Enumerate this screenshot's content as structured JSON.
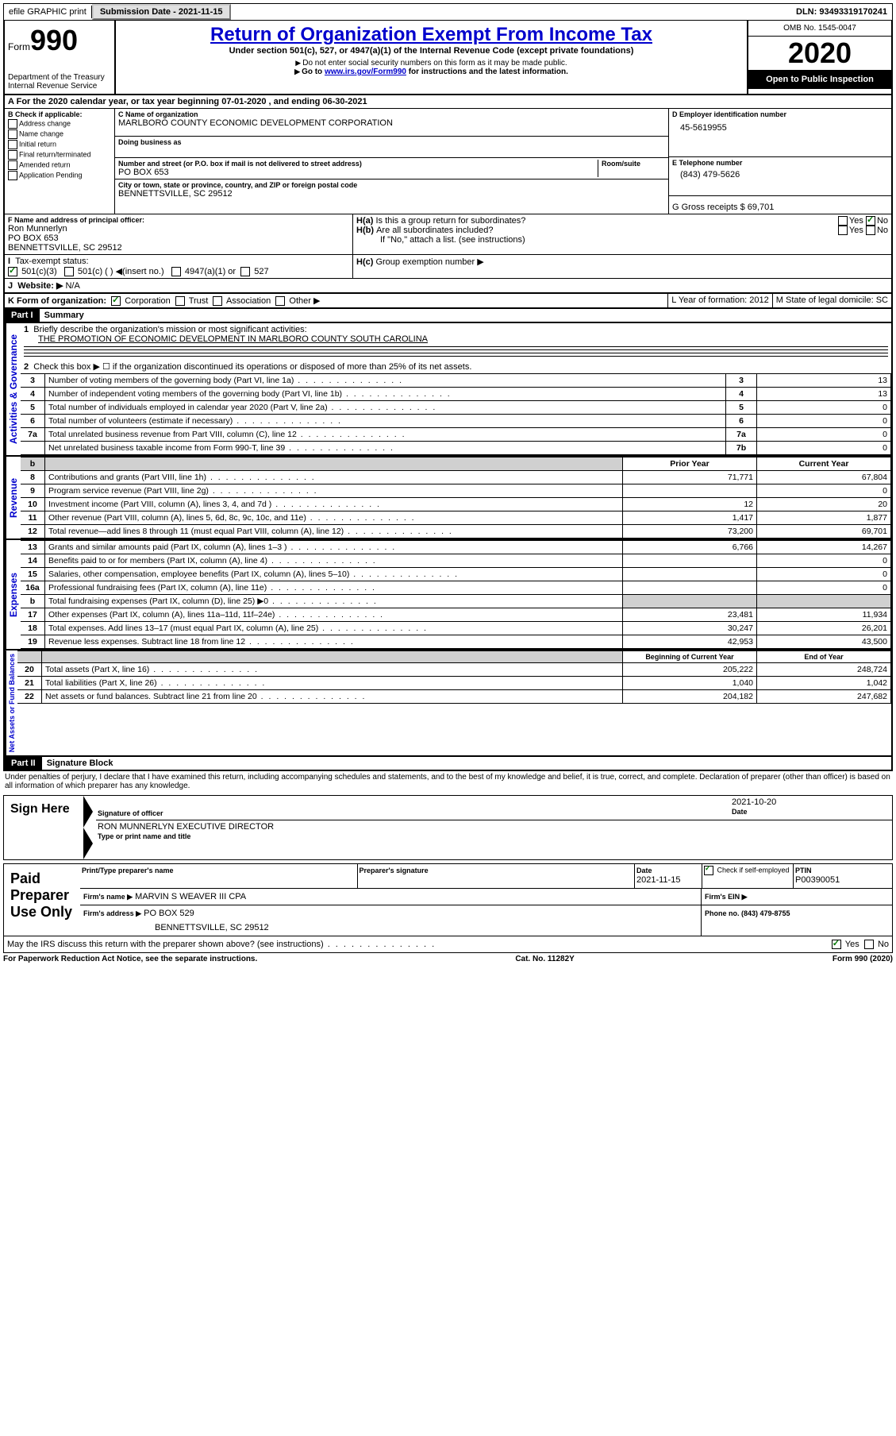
{
  "topbar": {
    "efile_label": "efile GRAPHIC print",
    "submission_label": "Submission Date - 2021-11-15",
    "dln_label": "DLN: 93493319170241"
  },
  "header": {
    "form_prefix": "Form",
    "form_number": "990",
    "dept": "Department of the Treasury",
    "irs": "Internal Revenue Service",
    "title": "Return of Organization Exempt From Income Tax",
    "subtitle": "Under section 501(c), 527, or 4947(a)(1) of the Internal Revenue Code (except private foundations)",
    "note1": "Do not enter social security numbers on this form as it may be made public.",
    "note2_pre": "Go to ",
    "note2_link": "www.irs.gov/Form990",
    "note2_post": " for instructions and the latest information.",
    "omb": "OMB No. 1545-0047",
    "year": "2020",
    "public": "Open to Public Inspection"
  },
  "period": {
    "text": "For the 2020 calendar year, or tax year beginning 07-01-2020    , and ending 06-30-2021"
  },
  "sectionB": {
    "label": "B Check if applicable:",
    "items": [
      "Address change",
      "Name change",
      "Initial return",
      "Final return/terminated",
      "Amended return",
      "Application Pending"
    ]
  },
  "sectionC": {
    "name_label": "C Name of organization",
    "name": "MARLBORO COUNTY ECONOMIC DEVELOPMENT CORPORATION",
    "dba_label": "Doing business as",
    "street_label": "Number and street (or P.O. box if mail is not delivered to street address)",
    "room_label": "Room/suite",
    "street": "PO BOX 653",
    "city_label": "City or town, state or province, country, and ZIP or foreign postal code",
    "city": "BENNETTSVILLE, SC  29512"
  },
  "sectionD": {
    "label": "D Employer identification number",
    "value": "45-5619955"
  },
  "sectionE": {
    "label": "E Telephone number",
    "value": "(843) 479-5626"
  },
  "sectionG": {
    "label": "G Gross receipts $ 69,701"
  },
  "sectionF": {
    "label": "F Name and address of principal officer:",
    "name": "Ron Munnerlyn",
    "addr1": "PO BOX 653",
    "addr2": "BENNETTSVILLE, SC  29512"
  },
  "sectionH": {
    "a_label": "Is this a group return for subordinates?",
    "a_yes": "Yes",
    "a_no": "No",
    "b_label": "Are all subordinates included?",
    "b_note": "If \"No,\" attach a list. (see instructions)",
    "c_label": "Group exemption number ▶"
  },
  "sectionI": {
    "label": "Tax-exempt status:",
    "opts": [
      "501(c)(3)",
      "501(c) (  ) ◀(insert no.)",
      "4947(a)(1) or",
      "527"
    ]
  },
  "sectionJ": {
    "label": "Website: ▶",
    "value": "N/A"
  },
  "sectionK": {
    "label": "K Form of organization:",
    "opts": [
      "Corporation",
      "Trust",
      "Association",
      "Other ▶"
    ]
  },
  "sectionL": {
    "label": "L Year of formation: 2012"
  },
  "sectionM": {
    "label": "M State of legal domicile: SC"
  },
  "parts": {
    "p1": "Part I",
    "p1_title": "Summary",
    "p2": "Part II",
    "p2_title": "Signature Block"
  },
  "summary": {
    "line1_label": "Briefly describe the organization's mission or most significant activities:",
    "line1_value": "THE PROMOTION OF ECONOMIC DEVELOPMENT IN MARLBORO COUNTY SOUTH CAROLINA",
    "line2_label": "Check this box ▶ ☐ if the organization discontinued its operations or disposed of more than 25% of its net assets.",
    "vertical_labels": {
      "gov": "Activities & Governance",
      "rev": "Revenue",
      "exp": "Expenses",
      "net": "Net Assets or Fund Balances"
    },
    "col_prior": "Prior Year",
    "col_current": "Current Year",
    "col_begin": "Beginning of Current Year",
    "col_end": "End of Year",
    "rows_gov": [
      {
        "n": "3",
        "label": "Number of voting members of the governing body (Part VI, line 1a)",
        "box": "3",
        "val": "13"
      },
      {
        "n": "4",
        "label": "Number of independent voting members of the governing body (Part VI, line 1b)",
        "box": "4",
        "val": "13"
      },
      {
        "n": "5",
        "label": "Total number of individuals employed in calendar year 2020 (Part V, line 2a)",
        "box": "5",
        "val": "0"
      },
      {
        "n": "6",
        "label": "Total number of volunteers (estimate if necessary)",
        "box": "6",
        "val": "0"
      },
      {
        "n": "7a",
        "label": "Total unrelated business revenue from Part VIII, column (C), line 12",
        "box": "7a",
        "val": "0"
      },
      {
        "n": "",
        "label": "Net unrelated business taxable income from Form 990-T, line 39",
        "box": "7b",
        "val": "0"
      }
    ],
    "rows_rev": [
      {
        "n": "8",
        "label": "Contributions and grants (Part VIII, line 1h)",
        "prior": "71,771",
        "curr": "67,804"
      },
      {
        "n": "9",
        "label": "Program service revenue (Part VIII, line 2g)",
        "prior": "",
        "curr": "0"
      },
      {
        "n": "10",
        "label": "Investment income (Part VIII, column (A), lines 3, 4, and 7d )",
        "prior": "12",
        "curr": "20"
      },
      {
        "n": "11",
        "label": "Other revenue (Part VIII, column (A), lines 5, 6d, 8c, 9c, 10c, and 11e)",
        "prior": "1,417",
        "curr": "1,877"
      },
      {
        "n": "12",
        "label": "Total revenue—add lines 8 through 11 (must equal Part VIII, column (A), line 12)",
        "prior": "73,200",
        "curr": "69,701"
      }
    ],
    "rows_exp": [
      {
        "n": "13",
        "label": "Grants and similar amounts paid (Part IX, column (A), lines 1–3 )",
        "prior": "6,766",
        "curr": "14,267"
      },
      {
        "n": "14",
        "label": "Benefits paid to or for members (Part IX, column (A), line 4)",
        "prior": "",
        "curr": "0"
      },
      {
        "n": "15",
        "label": "Salaries, other compensation, employee benefits (Part IX, column (A), lines 5–10)",
        "prior": "",
        "curr": "0"
      },
      {
        "n": "16a",
        "label": "Professional fundraising fees (Part IX, column (A), line 11e)",
        "prior": "",
        "curr": "0"
      },
      {
        "n": "b",
        "label": "Total fundraising expenses (Part IX, column (D), line 25) ▶0",
        "prior": "SHADE",
        "curr": "SHADE"
      },
      {
        "n": "17",
        "label": "Other expenses (Part IX, column (A), lines 11a–11d, 11f–24e)",
        "prior": "23,481",
        "curr": "11,934"
      },
      {
        "n": "18",
        "label": "Total expenses. Add lines 13–17 (must equal Part IX, column (A), line 25)",
        "prior": "30,247",
        "curr": "26,201"
      },
      {
        "n": "19",
        "label": "Revenue less expenses. Subtract line 18 from line 12",
        "prior": "42,953",
        "curr": "43,500"
      }
    ],
    "rows_net": [
      {
        "n": "20",
        "label": "Total assets (Part X, line 16)",
        "prior": "205,222",
        "curr": "248,724"
      },
      {
        "n": "21",
        "label": "Total liabilities (Part X, line 26)",
        "prior": "1,040",
        "curr": "1,042"
      },
      {
        "n": "22",
        "label": "Net assets or fund balances. Subtract line 21 from line 20",
        "prior": "204,182",
        "curr": "247,682"
      }
    ]
  },
  "signature": {
    "penalties": "Under penalties of perjury, I declare that I have examined this return, including accompanying schedules and statements, and to the best of my knowledge and belief, it is true, correct, and complete. Declaration of preparer (other than officer) is based on all information of which preparer has any knowledge.",
    "sign_here": "Sign Here",
    "sig_officer": "Signature of officer",
    "date_label": "Date",
    "date_value": "2021-10-20",
    "name_title": "RON MUNNERLYN  EXECUTIVE DIRECTOR",
    "name_title_label": "Type or print name and title",
    "paid": "Paid Preparer Use Only",
    "prep_name_label": "Print/Type preparer's name",
    "prep_sig_label": "Preparer's signature",
    "prep_date_label": "Date",
    "prep_date": "2021-11-15",
    "check_label": "Check ☑ if self-employed",
    "ptin_label": "PTIN",
    "ptin": "P00390051",
    "firm_name_label": "Firm's name    ▶",
    "firm_name": "MARVIN S WEAVER III CPA",
    "firm_ein_label": "Firm's EIN ▶",
    "firm_addr_label": "Firm's address ▶",
    "firm_addr1": "PO BOX 529",
    "firm_addr2": "BENNETTSVILLE, SC  29512",
    "phone_label": "Phone no. (843) 479-8755",
    "discuss": "May the IRS discuss this return with the preparer shown above? (see instructions)",
    "yes": "Yes",
    "no": "No"
  },
  "footer": {
    "left": "For Paperwork Reduction Act Notice, see the separate instructions.",
    "center": "Cat. No. 11282Y",
    "right": "Form 990 (2020)"
  }
}
